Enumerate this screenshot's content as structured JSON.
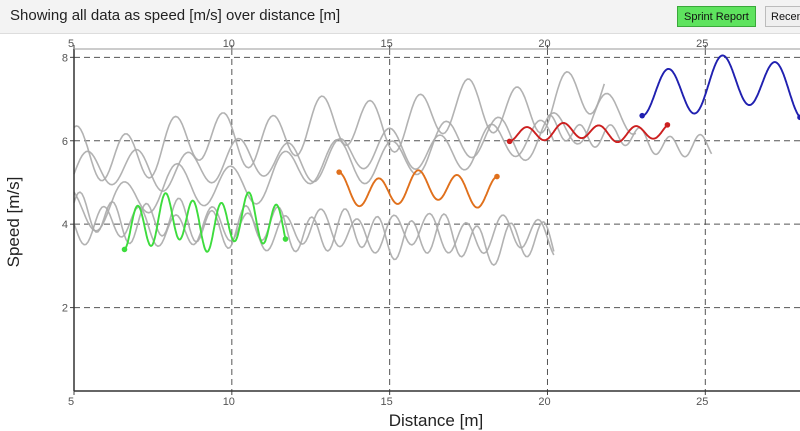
{
  "header": {
    "title": "Showing all data as speed [m/s] over distance [m]",
    "sprint_report_label": "Sprint Report",
    "recent_label": "Recent"
  },
  "colors": {
    "grey": "#aaaaaa",
    "green": "#3ddc3d",
    "orange": "#e0701c",
    "red": "#cc1f1f",
    "blue": "#2020b0",
    "sprint_button": "#5ee35e"
  },
  "chart_data": {
    "type": "line",
    "xlabel": "Distance [m]",
    "ylabel": "Speed [m/s]",
    "xlim": [
      5,
      28
    ],
    "ylim": [
      0,
      8.2
    ],
    "x_ticks": [
      5,
      10,
      15,
      20,
      25
    ],
    "y_ticks": [
      2,
      4,
      6,
      8
    ],
    "grid": true,
    "legend": "none",
    "series": [
      {
        "color_key": "grey",
        "x_start": 5.0,
        "x_end": 20.2,
        "base": 5.2,
        "trend": 0.8,
        "amp": 0.45,
        "period": 1.6,
        "phase": 0.0
      },
      {
        "color_key": "grey",
        "x_start": 5.0,
        "x_end": 21.8,
        "base": 5.6,
        "trend": 1.5,
        "amp": 0.6,
        "period": 1.55,
        "phase": 1.2
      },
      {
        "color_key": "grey",
        "x_start": 5.0,
        "x_end": 22.8,
        "base": 4.4,
        "trend": 2.2,
        "amp": 0.5,
        "period": 1.7,
        "phase": 2.1
      },
      {
        "color_key": "grey",
        "x_start": 5.0,
        "x_end": 20.2,
        "base": 4.2,
        "trend": -0.7,
        "amp": 0.45,
        "period": 1.05,
        "phase": 0.5
      },
      {
        "color_key": "grey",
        "x_start": 5.0,
        "x_end": 20.2,
        "base": 4.0,
        "trend": -0.3,
        "amp": 0.4,
        "period": 1.15,
        "phase": 2.8
      },
      {
        "color_key": "grey",
        "x_start": 20.0,
        "x_end": 25.2,
        "base": 6.3,
        "trend": -0.5,
        "amp": 0.25,
        "period": 0.95,
        "phase": 1.0
      },
      {
        "color_key": "green",
        "x_start": 6.6,
        "x_end": 11.7,
        "base": 4.05,
        "trend": 0.0,
        "amp": 0.55,
        "period": 0.88,
        "phase": -1.4,
        "dots": true
      },
      {
        "color_key": "orange",
        "x_start": 13.4,
        "x_end": 18.4,
        "base": 4.85,
        "trend": 0.0,
        "amp": 0.35,
        "period": 1.25,
        "phase": 1.57,
        "dots": true
      },
      {
        "color_key": "red",
        "x_start": 18.8,
        "x_end": 23.8,
        "base": 6.2,
        "trend": 0.0,
        "amp": 0.18,
        "period": 1.15,
        "phase": -1.4,
        "dots": true
      },
      {
        "color_key": "blue",
        "x_start": 23.0,
        "x_end": 28.0,
        "base": 7.3,
        "trend": 0.0,
        "amp": 0.6,
        "period": 1.7,
        "phase": -1.5,
        "dots": true
      }
    ]
  }
}
